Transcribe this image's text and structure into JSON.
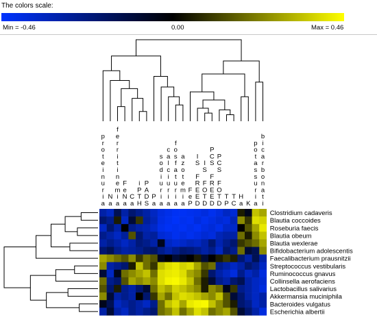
{
  "color_scale": {
    "title": "The colors scale:",
    "min_label": "Min = -0.46",
    "mid_label": "0.00",
    "max_label": "Max = 0.46",
    "min_color": "#0033ff",
    "mid_color": "#000000",
    "max_color": "#ffff00"
  },
  "chart_data": {
    "type": "heatmap",
    "title": "",
    "value_range": [
      -0.46,
      0.46
    ],
    "columns": [
      "proteinuria",
      "Na",
      "ferritinemia",
      "FeNa",
      "Ca",
      "iPTH",
      "PADS",
      "Pa",
      "sodiuria",
      "calciuria",
      "fosfaturia",
      "azotemia",
      "FeP",
      "IS FREE",
      "IS FOT",
      "PCS FREE",
      "PCS FOT",
      "TP",
      "TC",
      "Ha",
      "K",
      "potassuria",
      "bicarbonati"
    ],
    "column_labels": [
      "proteinuria",
      "Na",
      "ferritinemia",
      "FeNa",
      "Ca",
      "iPTH",
      "PADS",
      "Pa",
      "sodiuria",
      "calciuria",
      "fosfaturia",
      "azotemia",
      "FeP",
      "IS FREED",
      "IS FOTD",
      "PCS FREED",
      "PCS FOTD",
      "TP",
      "TC",
      "Ha",
      "K",
      "potassuria",
      "bicarbonati"
    ],
    "rows": [
      "Clostridium cadaveris",
      "Blautia coccoides",
      "Roseburia faecis",
      "Blautia obeum",
      "Blautia wexlerae",
      "Bifidobacterium adolescentis",
      "Faecalibacterium prausnitzii",
      "Streptococcus vestibularis",
      "Ruminococcus gnavus",
      "Collinsella aerofaciens",
      "Lactobacillus salivarius",
      "Akkermansia muciniphila",
      "Bacteroides vulgatus",
      "Escherichia albertii"
    ],
    "values": [
      [
        -0.3,
        -0.35,
        -0.15,
        -0.3,
        -0.2,
        -0.25,
        -0.3,
        -0.35,
        -0.4,
        -0.42,
        -0.44,
        -0.44,
        -0.43,
        -0.42,
        -0.4,
        -0.43,
        -0.4,
        -0.35,
        -0.38,
        0.05,
        -0.05,
        0.35,
        0.3
      ],
      [
        -0.2,
        -0.25,
        0.05,
        -0.35,
        -0.1,
        0.1,
        -0.28,
        -0.33,
        -0.41,
        -0.43,
        -0.45,
        -0.43,
        -0.44,
        -0.4,
        -0.43,
        -0.41,
        -0.38,
        -0.4,
        -0.33,
        0.25,
        0.1,
        0.4,
        0.38
      ],
      [
        -0.35,
        -0.2,
        -0.3,
        0.0,
        -0.25,
        -0.3,
        -0.32,
        -0.36,
        -0.42,
        -0.44,
        -0.43,
        -0.44,
        -0.42,
        -0.44,
        -0.41,
        -0.39,
        -0.42,
        -0.36,
        -0.36,
        0.0,
        0.15,
        0.3,
        0.42
      ],
      [
        -0.25,
        -0.3,
        -0.35,
        -0.28,
        0.15,
        -0.2,
        -0.3,
        -0.28,
        -0.38,
        -0.4,
        -0.43,
        -0.41,
        -0.43,
        -0.41,
        -0.38,
        -0.4,
        -0.33,
        -0.3,
        -0.3,
        0.2,
        0.05,
        0.25,
        0.35
      ],
      [
        -0.3,
        -0.25,
        -0.3,
        -0.35,
        -0.3,
        -0.22,
        -0.25,
        -0.3,
        -0.05,
        -0.35,
        -0.38,
        -0.36,
        -0.33,
        -0.35,
        -0.3,
        -0.2,
        -0.32,
        -0.25,
        -0.2,
        0.1,
        0.15,
        0.2,
        0.3
      ],
      [
        -0.2,
        -0.15,
        -0.25,
        -0.3,
        -0.28,
        -0.25,
        -0.2,
        -0.18,
        -0.25,
        -0.3,
        -0.25,
        -0.2,
        -0.22,
        -0.25,
        -0.3,
        -0.25,
        -0.35,
        -0.2,
        -0.25,
        0.2,
        -0.1,
        -0.15,
        0.25
      ],
      [
        0.3,
        0.25,
        0.2,
        0.15,
        0.25,
        0.1,
        0.2,
        0.15,
        -0.05,
        0.0,
        -0.1,
        -0.05,
        0.0,
        0.05,
        -0.1,
        0.0,
        0.05,
        0.1,
        0.05,
        -0.2,
        -0.3,
        -0.15,
        -0.3
      ],
      [
        0.25,
        -0.3,
        -0.25,
        -0.2,
        0.05,
        0.35,
        0.2,
        0.1,
        0.35,
        0.4,
        0.42,
        0.38,
        0.4,
        0.3,
        0.15,
        0.2,
        -0.25,
        -0.3,
        -0.35,
        -0.3,
        -0.2,
        -0.25,
        -0.35
      ],
      [
        -0.1,
        -0.35,
        -0.05,
        0.2,
        0.25,
        0.3,
        0.35,
        0.2,
        0.4,
        0.42,
        0.43,
        0.4,
        0.3,
        0.25,
        0.1,
        -0.2,
        -0.3,
        -0.35,
        -0.4,
        -0.25,
        -0.35,
        -0.3,
        -0.4
      ],
      [
        0.2,
        -0.25,
        -0.2,
        0.15,
        0.3,
        0.25,
        0.3,
        0.25,
        0.4,
        0.44,
        0.45,
        0.42,
        0.35,
        0.2,
        0.05,
        -0.1,
        -0.25,
        -0.3,
        -0.2,
        -0.15,
        -0.3,
        -0.35,
        -0.38
      ],
      [
        0.15,
        -0.2,
        0.05,
        -0.25,
        -0.3,
        -0.2,
        -0.1,
        0.2,
        0.35,
        0.3,
        0.38,
        0.35,
        0.3,
        0.25,
        0.05,
        0.25,
        0.2,
        -0.05,
        0.1,
        -0.25,
        -0.3,
        -0.35,
        -0.4
      ],
      [
        0.25,
        -0.1,
        -0.3,
        -0.25,
        -0.3,
        0.0,
        -0.2,
        0.1,
        0.3,
        0.2,
        0.35,
        0.4,
        0.38,
        0.35,
        0.3,
        0.25,
        0.35,
        0.15,
        -0.1,
        -0.2,
        -0.3,
        -0.35,
        -0.3
      ],
      [
        -0.05,
        -0.15,
        -0.35,
        -0.3,
        -0.25,
        -0.3,
        -0.35,
        -0.25,
        0.2,
        0.35,
        0.4,
        0.3,
        0.42,
        0.44,
        0.45,
        0.35,
        0.25,
        0.15,
        0.05,
        -0.2,
        -0.25,
        -0.35,
        -0.3
      ],
      [
        -0.3,
        -0.1,
        -0.3,
        -0.35,
        -0.25,
        -0.3,
        -0.25,
        -0.2,
        0.2,
        0.25,
        0.35,
        0.2,
        0.3,
        0.4,
        0.35,
        0.2,
        0.25,
        0.3,
        0.15,
        -0.1,
        -0.2,
        -0.3,
        -0.4
      ]
    ]
  }
}
